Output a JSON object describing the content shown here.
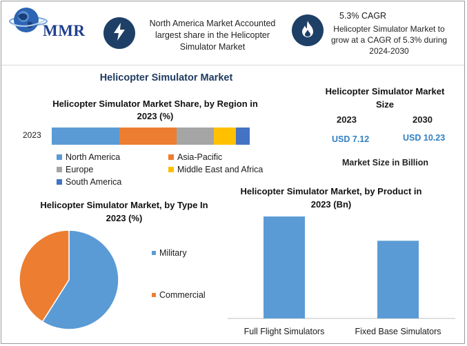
{
  "brand": {
    "logo_text": "MMR"
  },
  "info_left": {
    "icon": "lightning-icon",
    "text": "North America Market Accounted largest share in the Helicopter Simulator Market"
  },
  "info_right": {
    "icon": "flame-icon",
    "title": "5.3% CAGR",
    "text": "Helicopter Simulator Market to grow at a CAGR of 5.3% during 2024-2030"
  },
  "main_title": "Helicopter Simulator Market",
  "market_size": {
    "title": "Helicopter Simulator Market Size",
    "years": [
      "2023",
      "2030"
    ],
    "values": [
      "USD 7.12",
      "USD 10.23"
    ],
    "unit_label": "Market Size in Billion"
  },
  "colors": {
    "north_america": "#5b9bd5",
    "asia_pacific": "#ed7d31",
    "europe": "#a5a5a5",
    "middle_east_africa": "#ffc000",
    "south_america": "#4472c4",
    "military": "#5b9bd5",
    "commercial": "#ed7d31",
    "badge": "#1e3f66",
    "value_blue": "#2f7fc1"
  },
  "chart_data": [
    {
      "type": "bar",
      "orientation": "horizontal-stacked",
      "title": "Helicopter Simulator Market Share, by Region in 2023 (%)",
      "categories": [
        "2023"
      ],
      "series": [
        {
          "name": "North America",
          "values": [
            34
          ]
        },
        {
          "name": "Asia-Pacific",
          "values": [
            29
          ]
        },
        {
          "name": "Europe",
          "values": [
            19
          ]
        },
        {
          "name": "Middle East and Africa",
          "values": [
            11
          ]
        },
        {
          "name": "South America",
          "values": [
            7
          ]
        }
      ],
      "legend": "bottom",
      "grid": false
    },
    {
      "type": "pie",
      "title": "Helicopter Simulator Market, by Type In 2023 (%)",
      "categories": [
        "Military",
        "Commercial"
      ],
      "values": [
        59,
        41
      ],
      "legend": "right"
    },
    {
      "type": "bar",
      "title": "Helicopter Simulator Market, by Product in 2023 (Bn)",
      "categories": [
        "Full Flight Simulators",
        "Fixed Base Simulators"
      ],
      "values": [
        4.2,
        3.2
      ],
      "ylim": [
        0,
        4.6
      ],
      "grid": false,
      "xlabel": "",
      "ylabel": ""
    }
  ]
}
